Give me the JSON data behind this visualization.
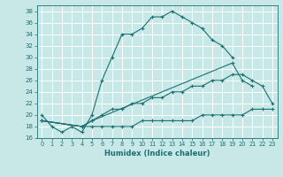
{
  "title": "",
  "xlabel": "Humidex (Indice chaleur)",
  "bg_color": "#c8e8e8",
  "grid_color": "#ffffff",
  "line_color": "#1a7070",
  "xlim": [
    -0.5,
    23.5
  ],
  "ylim": [
    16,
    39
  ],
  "yticks": [
    16,
    18,
    20,
    22,
    24,
    26,
    28,
    30,
    32,
    34,
    36,
    38
  ],
  "xticks": [
    0,
    1,
    2,
    3,
    4,
    5,
    6,
    7,
    8,
    9,
    10,
    11,
    12,
    13,
    14,
    15,
    16,
    17,
    18,
    19,
    20,
    21,
    22,
    23
  ],
  "series": [
    {
      "x": [
        0,
        1,
        2,
        3,
        4,
        5,
        6,
        7,
        8,
        9,
        10,
        11,
        12,
        13,
        14,
        15,
        16,
        17,
        18,
        19
      ],
      "y": [
        20,
        18,
        17,
        18,
        17,
        20,
        26,
        30,
        34,
        34,
        35,
        37,
        37,
        38,
        37,
        36,
        35,
        33,
        32,
        30
      ]
    },
    {
      "x": [
        0,
        4,
        5,
        19,
        20,
        21
      ],
      "y": [
        19,
        18,
        19,
        29,
        26,
        25
      ]
    },
    {
      "x": [
        0,
        4,
        5,
        6,
        7,
        8,
        9,
        10,
        11,
        12,
        13,
        14,
        15,
        16,
        17,
        18,
        19,
        20,
        21,
        22,
        23
      ],
      "y": [
        19,
        18,
        19,
        20,
        21,
        21,
        22,
        22,
        23,
        23,
        24,
        24,
        25,
        25,
        26,
        26,
        27,
        27,
        26,
        25,
        22
      ]
    },
    {
      "x": [
        0,
        4,
        5,
        6,
        7,
        8,
        9,
        10,
        11,
        12,
        13,
        14,
        15,
        16,
        17,
        18,
        19,
        20,
        21,
        22,
        23
      ],
      "y": [
        19,
        18,
        18,
        18,
        18,
        18,
        18,
        19,
        19,
        19,
        19,
        19,
        19,
        20,
        20,
        20,
        20,
        20,
        21,
        21,
        21
      ]
    }
  ]
}
